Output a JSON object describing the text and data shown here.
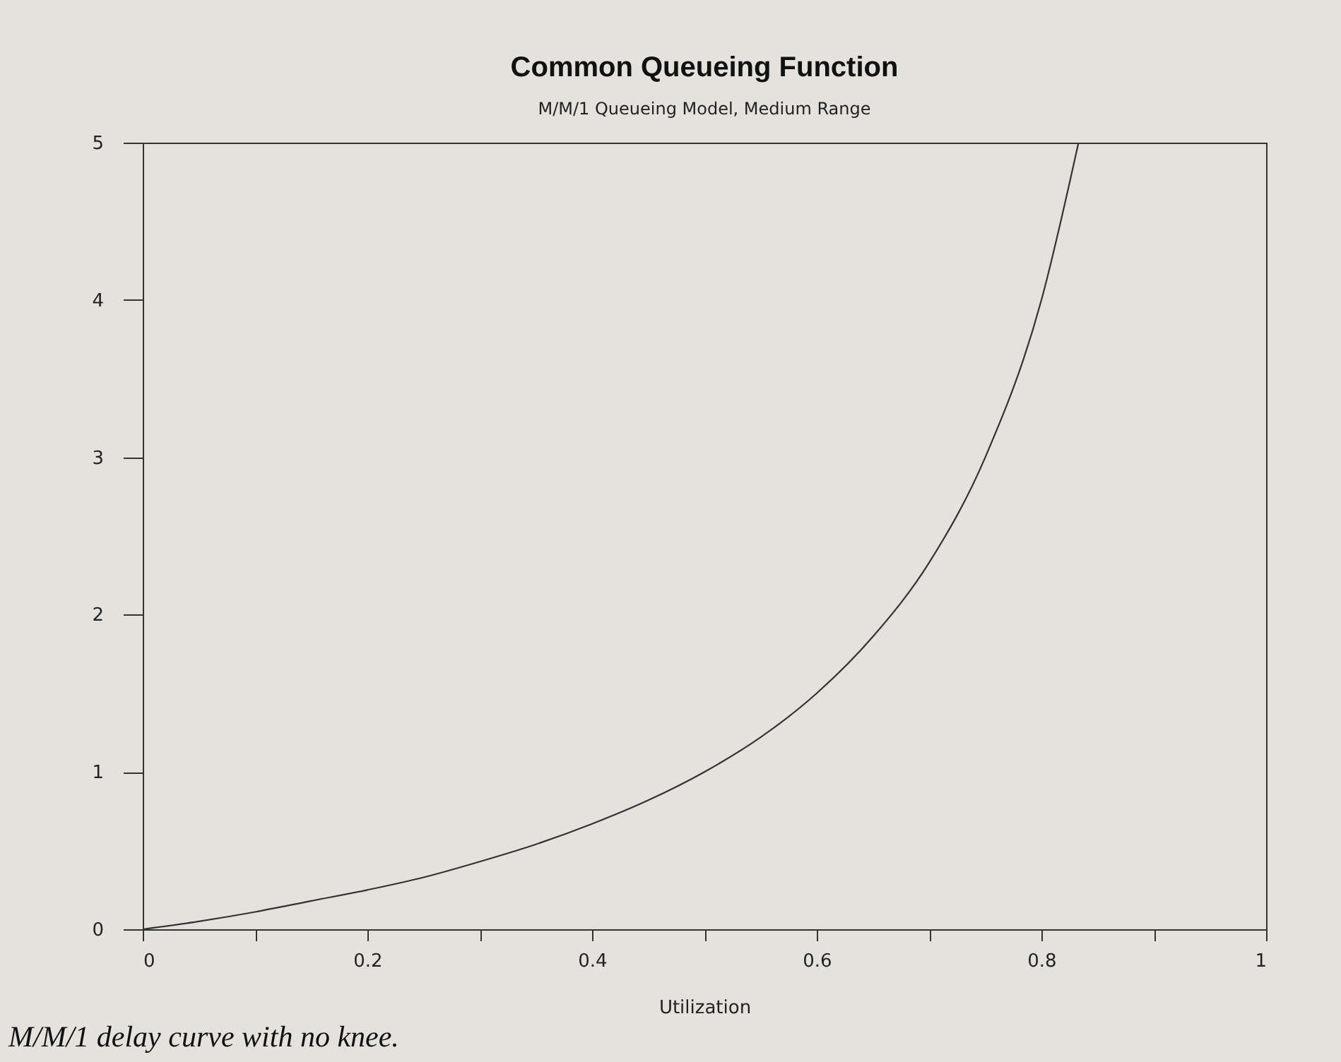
{
  "chart_data": {
    "type": "line",
    "title": "Common Queueing Function",
    "subtitle": "M/M/1 Queueing Model, Medium Range",
    "xlabel": "Utilization",
    "annotations": [
      "M/M/1 delay curve with no knee."
    ],
    "x": [
      0,
      0.05,
      0.1,
      0.15,
      0.2,
      0.25,
      0.3,
      0.35,
      0.4,
      0.45,
      0.5,
      0.55,
      0.6,
      0.65,
      0.7,
      0.75,
      0.8,
      0.833
    ],
    "series": [
      {
        "color": "#333333",
        "values": [
          0,
          0.05,
          0.11,
          0.18,
          0.25,
          0.33,
          0.43,
          0.54,
          0.67,
          0.82,
          1.0,
          1.22,
          1.5,
          1.86,
          2.33,
          3.0,
          4.0,
          5.0
        ]
      }
    ],
    "xlim": [
      0,
      1
    ],
    "ylim": [
      0,
      5
    ],
    "xticks": [
      0,
      {
        "value": 0.1,
        "label": null
      },
      0.2,
      {
        "value": 0.3,
        "label": null
      },
      0.4,
      {
        "value": 0.5,
        "label": null
      },
      0.6,
      {
        "value": 0.7,
        "label": null
      },
      0.8,
      {
        "value": 0.9,
        "label": null
      },
      1
    ],
    "yticks": [
      0,
      1,
      2,
      3,
      4,
      5
    ],
    "grid": false,
    "marker": "none",
    "line_style": "solid"
  }
}
